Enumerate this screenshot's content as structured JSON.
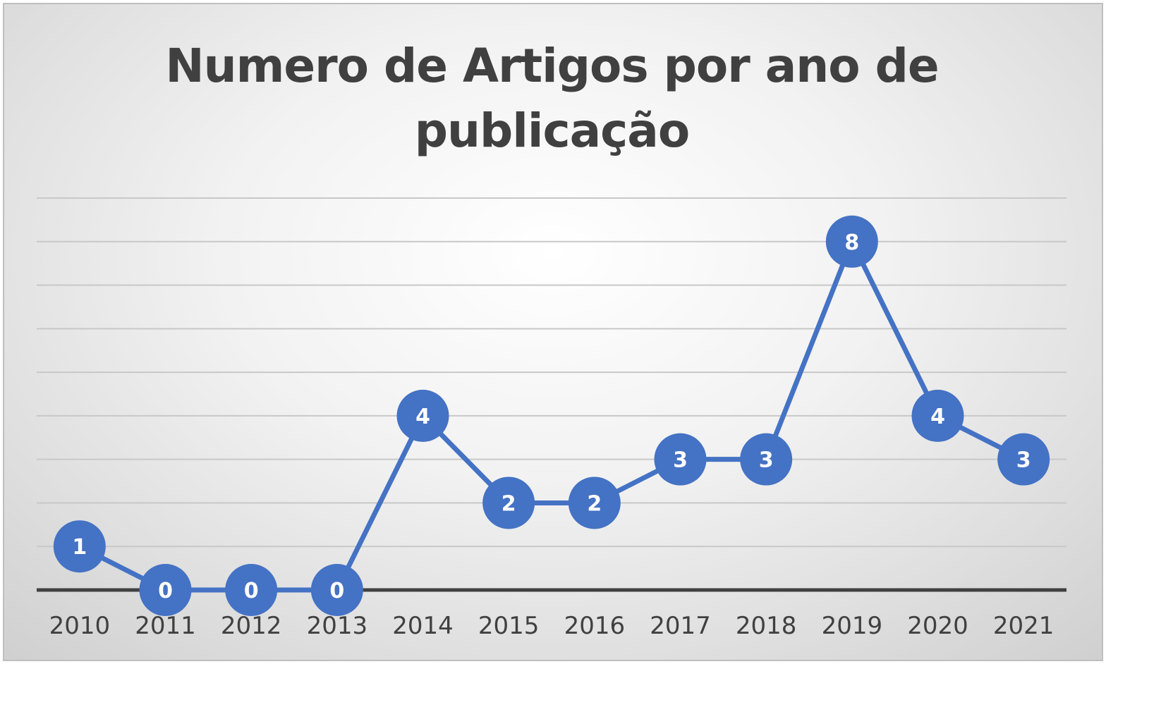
{
  "chart_data": {
    "type": "line",
    "title": "Numero de Artigos por ano de publicação",
    "xlabel": "",
    "ylabel": "",
    "categories": [
      "2010",
      "2011",
      "2012",
      "2013",
      "2014",
      "2015",
      "2016",
      "2017",
      "2018",
      "2019",
      "2020",
      "2021"
    ],
    "values": [
      1,
      0,
      0,
      0,
      4,
      2,
      2,
      3,
      3,
      8,
      4,
      3
    ],
    "ylim": [
      0,
      9
    ],
    "grid": true,
    "legend": "none",
    "data_labels": true,
    "colors": {
      "line": "#4472c4",
      "marker": "#4472c4",
      "label_text": "#ffffff",
      "gridline": "#c8c8c8",
      "axis": "#404040",
      "title": "#404040"
    }
  }
}
